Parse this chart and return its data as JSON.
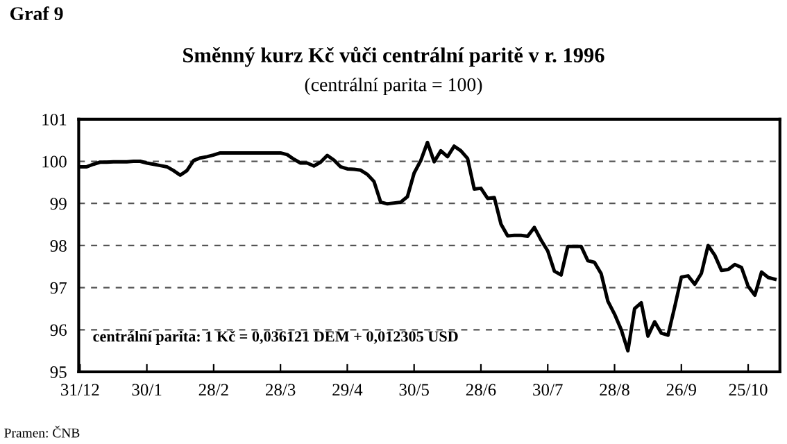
{
  "chart_data": {
    "type": "line",
    "title": "Směnný kurz Kč vůči centrální paritě v r. 1996",
    "subtitle": "(centrální parita = 100)",
    "annotations": [
      "Graf 9",
      "centrální parita: 1 Kč = 0,036121 DEM + 0,012305 USD",
      "Pramen: ČNB"
    ],
    "categories": [
      "31/12",
      null,
      null,
      null,
      null,
      null,
      null,
      null,
      null,
      null,
      "30/1",
      null,
      null,
      null,
      null,
      null,
      null,
      null,
      null,
      null,
      "28/2",
      null,
      null,
      null,
      null,
      null,
      null,
      null,
      null,
      null,
      "28/3",
      null,
      null,
      null,
      null,
      null,
      null,
      null,
      null,
      null,
      "29/4",
      null,
      null,
      null,
      null,
      null,
      null,
      null,
      null,
      null,
      "30/5",
      null,
      null,
      null,
      null,
      null,
      null,
      null,
      null,
      null,
      "28/6",
      null,
      null,
      null,
      null,
      null,
      null,
      null,
      null,
      null,
      "30/7",
      null,
      null,
      null,
      null,
      null,
      null,
      null,
      null,
      null,
      "28/8",
      null,
      null,
      null,
      null,
      null,
      null,
      null,
      null,
      null,
      "26/9",
      null,
      null,
      null,
      null,
      null,
      null,
      null,
      null,
      null,
      "25/10",
      null,
      null,
      null,
      null
    ],
    "series": [
      {
        "color": "#000000",
        "values": [
          99.87,
          99.87,
          99.93,
          99.98,
          99.98,
          99.99,
          99.99,
          99.99,
          100.0,
          100.0,
          99.96,
          99.93,
          99.9,
          99.87,
          99.78,
          99.67,
          99.78,
          100.02,
          100.08,
          100.11,
          100.15,
          100.2,
          100.2,
          100.2,
          100.2,
          100.2,
          100.2,
          100.2,
          100.2,
          100.2,
          100.2,
          100.16,
          100.05,
          99.96,
          99.96,
          99.89,
          99.98,
          100.14,
          100.03,
          99.87,
          99.82,
          99.81,
          99.79,
          99.69,
          99.52,
          99.03,
          98.99,
          99.01,
          99.03,
          99.16,
          99.72,
          100.02,
          100.45,
          99.99,
          100.25,
          100.11,
          100.36,
          100.25,
          100.07,
          99.34,
          99.36,
          99.12,
          99.14,
          98.51,
          98.23,
          98.24,
          98.24,
          98.22,
          98.43,
          98.13,
          97.87,
          97.39,
          97.3,
          97.98,
          97.98,
          97.98,
          97.64,
          97.6,
          97.33,
          96.68,
          96.37,
          96.0,
          95.5,
          96.5,
          96.64,
          95.85,
          96.19,
          95.92,
          95.87,
          96.54,
          97.25,
          97.28,
          97.08,
          97.34,
          98.0,
          97.77,
          97.41,
          97.43,
          97.55,
          97.48,
          97.03,
          96.82,
          97.37,
          97.24,
          97.2
        ]
      }
    ],
    "ylim": [
      95,
      101
    ],
    "yticks": [
      95,
      96,
      97,
      98,
      99,
      100,
      101
    ],
    "grid": "y",
    "marker": "none",
    "line_style": "solid"
  }
}
